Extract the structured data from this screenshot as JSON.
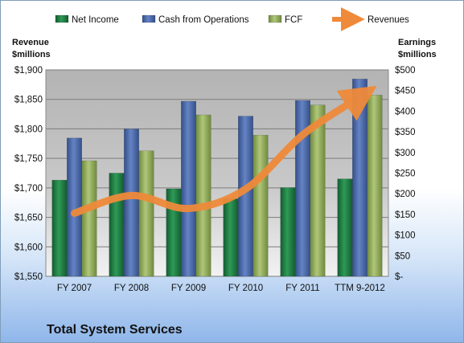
{
  "chart_data": {
    "type": "bar",
    "title": "Total System Services",
    "categories": [
      "FY 2007",
      "FY 2008",
      "FY 2009",
      "FY 2010",
      "FY 2011",
      "TTM 9-2012"
    ],
    "series": [
      {
        "name": "Net Income",
        "axis": "right",
        "color": "#1f7a42",
        "values": [
          233,
          250,
          212,
          188,
          215,
          236
        ]
      },
      {
        "name": "Cash from Operations",
        "axis": "right",
        "color": "#4a6aa6",
        "values": [
          335,
          357,
          424,
          388,
          426,
          478
        ]
      },
      {
        "name": "FCF",
        "axis": "right",
        "color": "#93ac5c",
        "values": [
          280,
          304,
          391,
          342,
          415,
          439
        ]
      },
      {
        "name": "Revenues",
        "axis": "left",
        "type": "line",
        "color": "#ef8a3a",
        "values": [
          1657,
          1687,
          1665,
          1698,
          1790,
          1854
        ]
      }
    ],
    "left_axis": {
      "label_line1": "Revenue",
      "label_line2": "$millions",
      "ylim": [
        1550,
        1900
      ],
      "ticks": [
        {
          "value": 1550,
          "label": "$1,550"
        },
        {
          "value": 1600,
          "label": "$1,600"
        },
        {
          "value": 1650,
          "label": "$1,650"
        },
        {
          "value": 1700,
          "label": "$1,700"
        },
        {
          "value": 1750,
          "label": "$1,750"
        },
        {
          "value": 1800,
          "label": "$1,800"
        },
        {
          "value": 1850,
          "label": "$1,850"
        },
        {
          "value": 1900,
          "label": "$1,900"
        }
      ]
    },
    "right_axis": {
      "label_line1": "Earnings",
      "label_line2": "$millions",
      "ylim": [
        0,
        500
      ],
      "ticks": [
        {
          "value": 0,
          "label": "$-"
        },
        {
          "value": 50,
          "label": "$50"
        },
        {
          "value": 100,
          "label": "$100"
        },
        {
          "value": 150,
          "label": "$150"
        },
        {
          "value": 200,
          "label": "$200"
        },
        {
          "value": 250,
          "label": "$250"
        },
        {
          "value": 300,
          "label": "$300"
        },
        {
          "value": 350,
          "label": "$350"
        },
        {
          "value": 400,
          "label": "$400"
        },
        {
          "value": 450,
          "label": "$450"
        },
        {
          "value": 500,
          "label": "$500"
        }
      ]
    },
    "grid": true,
    "legend_position": "top"
  }
}
